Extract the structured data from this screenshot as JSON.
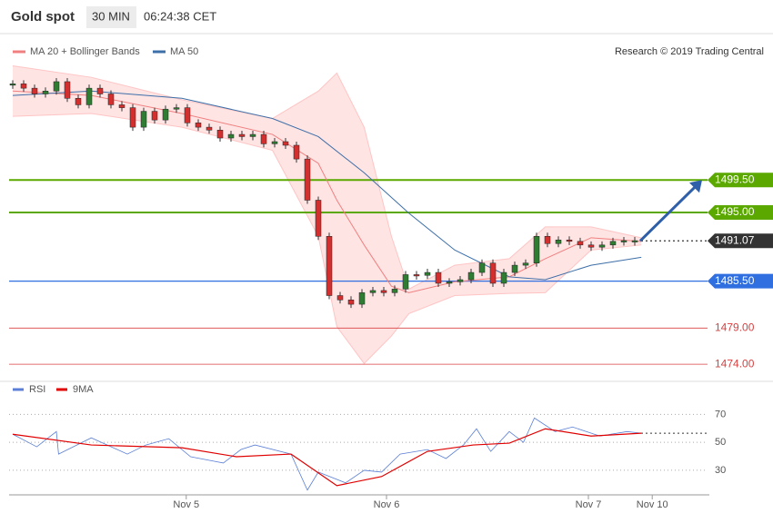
{
  "chart_data": {
    "type": "candlestick",
    "title": "Gold spot",
    "interval": "30 MIN",
    "time": "06:24:38 CET",
    "credit": "Research © 2019 Trading Central",
    "xlim": [
      -0.33,
      63.4
    ],
    "xticks": [
      {
        "value": 15.9,
        "label": "Nov 5"
      },
      {
        "value": 34.25,
        "label": "Nov 6"
      },
      {
        "value": 52.75,
        "label": "Nov 7"
      },
      {
        "value": 58.6,
        "label": "Nov 10"
      }
    ],
    "ylim": [
      1471,
      1519
    ],
    "up_color": "#2e7d32",
    "down_color": "#d32f2f",
    "close": [
      1512.8,
      1512.2,
      1511.4,
      1511.8,
      1513.1,
      1510.8,
      1509.9,
      1512.2,
      1511.4,
      1509.9,
      1509.5,
      1506.8,
      1509.0,
      1507.8,
      1509.3,
      1509.5,
      1507.4,
      1506.8,
      1506.4,
      1505.3,
      1505.8,
      1505.5,
      1505.8,
      1504.5,
      1504.8,
      1504.3,
      1502.4,
      1496.7,
      1491.7,
      1483.5,
      1482.9,
      1482.3,
      1483.9,
      1484.2,
      1483.9,
      1484.4,
      1486.4,
      1486.3,
      1486.7,
      1485.2,
      1485.4,
      1485.7,
      1486.7,
      1488.0,
      1485.2,
      1486.7,
      1487.7,
      1488.0,
      1491.7,
      1490.7,
      1491.2,
      1491.0,
      1490.5,
      1490.2,
      1490.5,
      1491.0,
      1491.1,
      1491.1
    ],
    "lines": [
      {
        "name": "MA 20 + Bollinger Bands",
        "color": "#f08080",
        "x": [
          0,
          7.2,
          15.5,
          23.8,
          28,
          29.7,
          32.2,
          34.7,
          36.3,
          40.5,
          45.5,
          48.8,
          53,
          57.6
        ],
        "values": [
          1511.8,
          1511.2,
          1508.7,
          1505.8,
          1501.8,
          1496.7,
          1490.5,
          1484.8,
          1483.9,
          1485.4,
          1486.1,
          1488.6,
          1491.5,
          1491.0
        ],
        "upper": [
          1515.3,
          1513.7,
          1510.6,
          1508.0,
          1511.8,
          1514.3,
          1506.8,
          1491.7,
          1484.4,
          1487.7,
          1488.6,
          1493.0,
          1493.0,
          1491.5
        ],
        "lower": [
          1508.3,
          1508.7,
          1506.8,
          1503.6,
          1491.7,
          1479.2,
          1474.1,
          1477.9,
          1481.0,
          1483.5,
          1483.8,
          1483.9,
          1489.8,
          1490.5
        ]
      },
      {
        "name": "MA 50",
        "color": "#3d6fa8",
        "x": [
          0,
          7.2,
          15.5,
          23.8,
          28,
          32.2,
          36.3,
          40.5,
          45.5,
          48.8,
          53,
          57.6
        ],
        "values": [
          1511.2,
          1511.8,
          1510.8,
          1508.0,
          1505.5,
          1500.5,
          1494.9,
          1489.8,
          1486.1,
          1485.7,
          1487.7,
          1488.8
        ]
      }
    ],
    "levels": [
      {
        "value": 1499.5,
        "label": "1499.50",
        "color": "#5aa800"
      },
      {
        "value": 1495,
        "label": "1495.00",
        "color": "#5aa800"
      },
      {
        "value": 1491.07,
        "label": "1491.07",
        "color": "#333333"
      },
      {
        "value": 1485.5,
        "label": "1485.50",
        "color": "#2f6fe0"
      },
      {
        "value": 1479,
        "label": "1479.00",
        "color": "#d84040"
      },
      {
        "value": 1474,
        "label": "1474.00",
        "color": "#d84040"
      }
    ],
    "rsi": {
      "ylim": [
        15,
        80
      ],
      "yticks": [
        30,
        50,
        70
      ],
      "series": [
        {
          "name": "RSI",
          "color": "#5b7fd6",
          "x": [
            0,
            2.2,
            4,
            4.2,
            7.2,
            10.5,
            12.2,
            14.3,
            16.3,
            19.3,
            20.9,
            22.2,
            25.5,
            27,
            28,
            30.5,
            32.2,
            33.8,
            35.5,
            38,
            39.7,
            41.3,
            42.5,
            43.8,
            45.5,
            46.8,
            47.8,
            49.7,
            51.3,
            53.8,
            56.3,
            57.6
          ],
          "values": [
            55.8,
            46.8,
            57.7,
            41.6,
            53.2,
            41.6,
            48.1,
            52.6,
            39.7,
            35.2,
            44.8,
            48.1,
            41.6,
            15.8,
            28.7,
            21,
            30,
            28.7,
            41.6,
            44.8,
            38.4,
            48.1,
            59.7,
            43.5,
            57.7,
            50,
            67.4,
            57.7,
            61,
            54.5,
            57.7,
            56.5
          ]
        },
        {
          "name": "9MA",
          "color": "#e00000",
          "x": [
            0,
            7.2,
            15.5,
            20.5,
            25.5,
            29.7,
            33.8,
            38,
            42.2,
            45.5,
            48.8,
            53,
            57.6
          ],
          "values": [
            55.8,
            48.1,
            46.1,
            39.7,
            41.6,
            19,
            25.5,
            43.5,
            48.1,
            49.4,
            59.7,
            54.5,
            56.5
          ]
        }
      ]
    }
  }
}
